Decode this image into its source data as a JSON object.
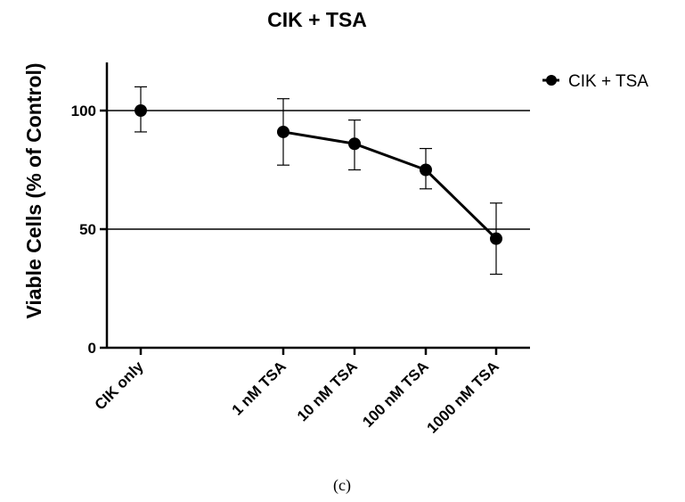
{
  "chart_data": {
    "type": "line",
    "title": "CIK + TSA",
    "ylabel": "Viable Cells (% of Control)",
    "xlabel": "",
    "categories": [
      "CIK only",
      "1 nM TSA",
      "10 nM TSA",
      "100 nM TSA",
      "1000 nM TSA"
    ],
    "ylim": [
      0,
      120
    ],
    "yticks": [
      0,
      50,
      100
    ],
    "reference_lines": [
      50,
      100
    ],
    "grid": false,
    "legend_position": "top-right",
    "series": [
      {
        "name": "CIK + TSA",
        "color": "#000000",
        "marker": "circle",
        "values": [
          100,
          91,
          86,
          75,
          46
        ],
        "error_high": [
          110,
          105,
          96,
          84,
          61
        ],
        "error_low": [
          91,
          77,
          75,
          67,
          31
        ],
        "connected": [
          false,
          true,
          true,
          true,
          true
        ]
      }
    ]
  },
  "caption": "(c)"
}
